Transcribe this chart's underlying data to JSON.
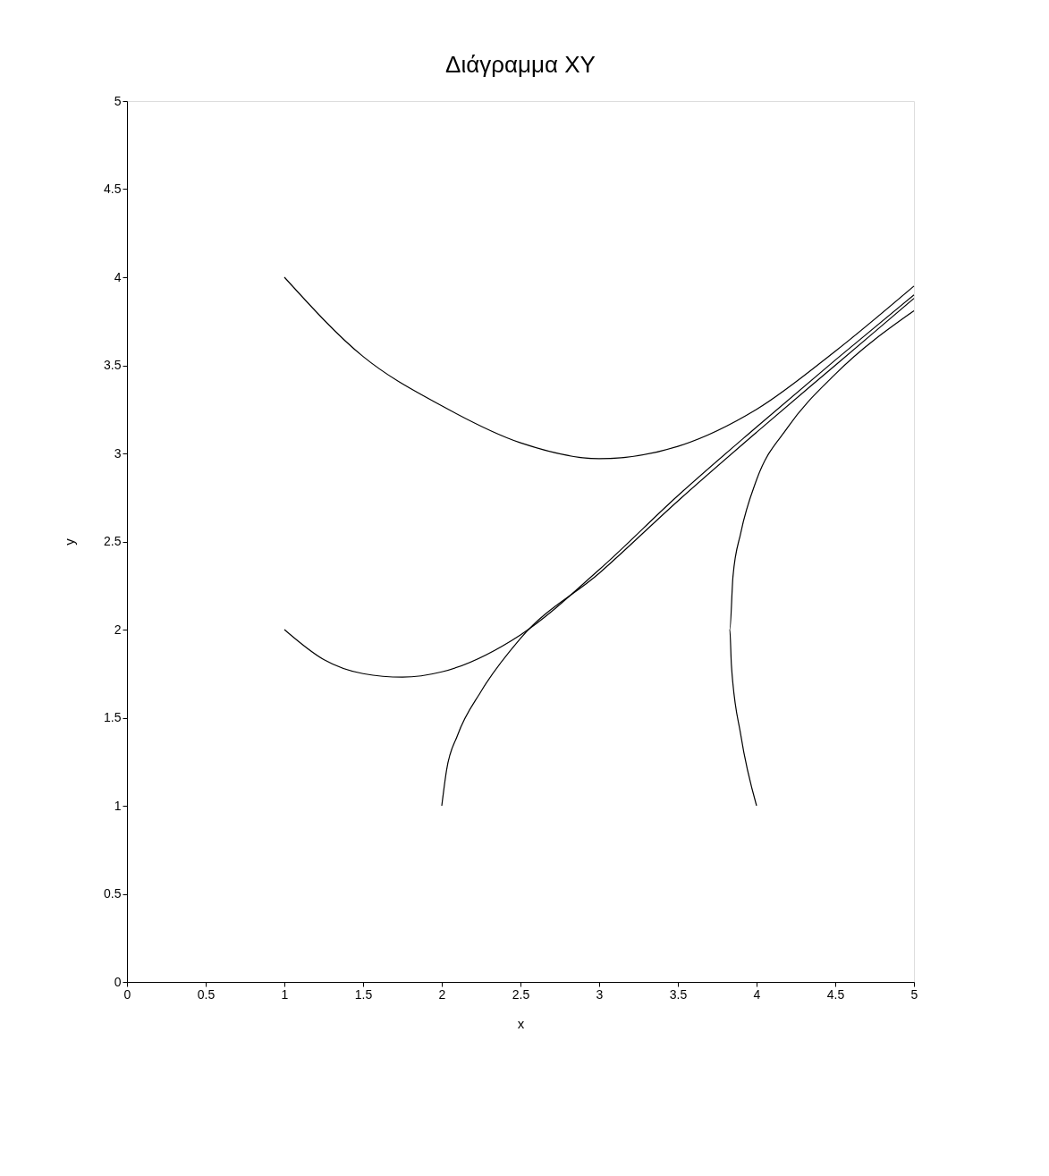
{
  "chart_data": {
    "type": "line",
    "title": "Διάγραμμα XY",
    "xlabel": "x",
    "ylabel": "y",
    "xlim": [
      0,
      5
    ],
    "ylim": [
      0,
      5
    ],
    "xticks": [
      0,
      0.5,
      1,
      1.5,
      2,
      2.5,
      3,
      3.5,
      4,
      4.5,
      5
    ],
    "yticks": [
      0,
      0.5,
      1,
      1.5,
      2,
      2.5,
      3,
      3.5,
      4,
      4.5,
      5
    ],
    "grid": false,
    "marker": "none",
    "line_style": "solid",
    "series": [
      {
        "color": "#000000",
        "x": [
          1,
          1.5,
          2,
          2.5,
          3,
          3.5,
          4,
          4.5,
          5
        ],
        "values": [
          4.0,
          3.55,
          3.27,
          3.06,
          2.97,
          3.04,
          3.25,
          3.58,
          3.95
        ]
      },
      {
        "color": "#000000",
        "x": [
          1,
          1.25,
          1.5,
          1.75,
          2,
          2.5,
          3,
          3.5,
          4,
          4.5,
          5
        ],
        "values": [
          2.0,
          1.83,
          1.75,
          1.73,
          1.76,
          1.97,
          2.34,
          2.76,
          3.15,
          3.53,
          3.9
        ]
      },
      {
        "color": "#000000",
        "x": [
          2,
          2.03,
          2.1,
          2.25,
          2.5,
          3,
          3.5,
          4,
          4.5,
          5
        ],
        "values": [
          1.0,
          1.2,
          1.4,
          1.65,
          1.95,
          2.32,
          2.73,
          3.12,
          3.5,
          3.88
        ]
      },
      {
        "color": "#000000",
        "x": [
          4,
          3.9,
          3.84,
          3.83,
          3.85,
          3.9,
          4,
          4.2,
          4.5,
          5
        ],
        "values": [
          1.0,
          1.4,
          1.8,
          2.0,
          2.3,
          2.55,
          2.85,
          3.15,
          3.45,
          3.81
        ]
      }
    ]
  }
}
